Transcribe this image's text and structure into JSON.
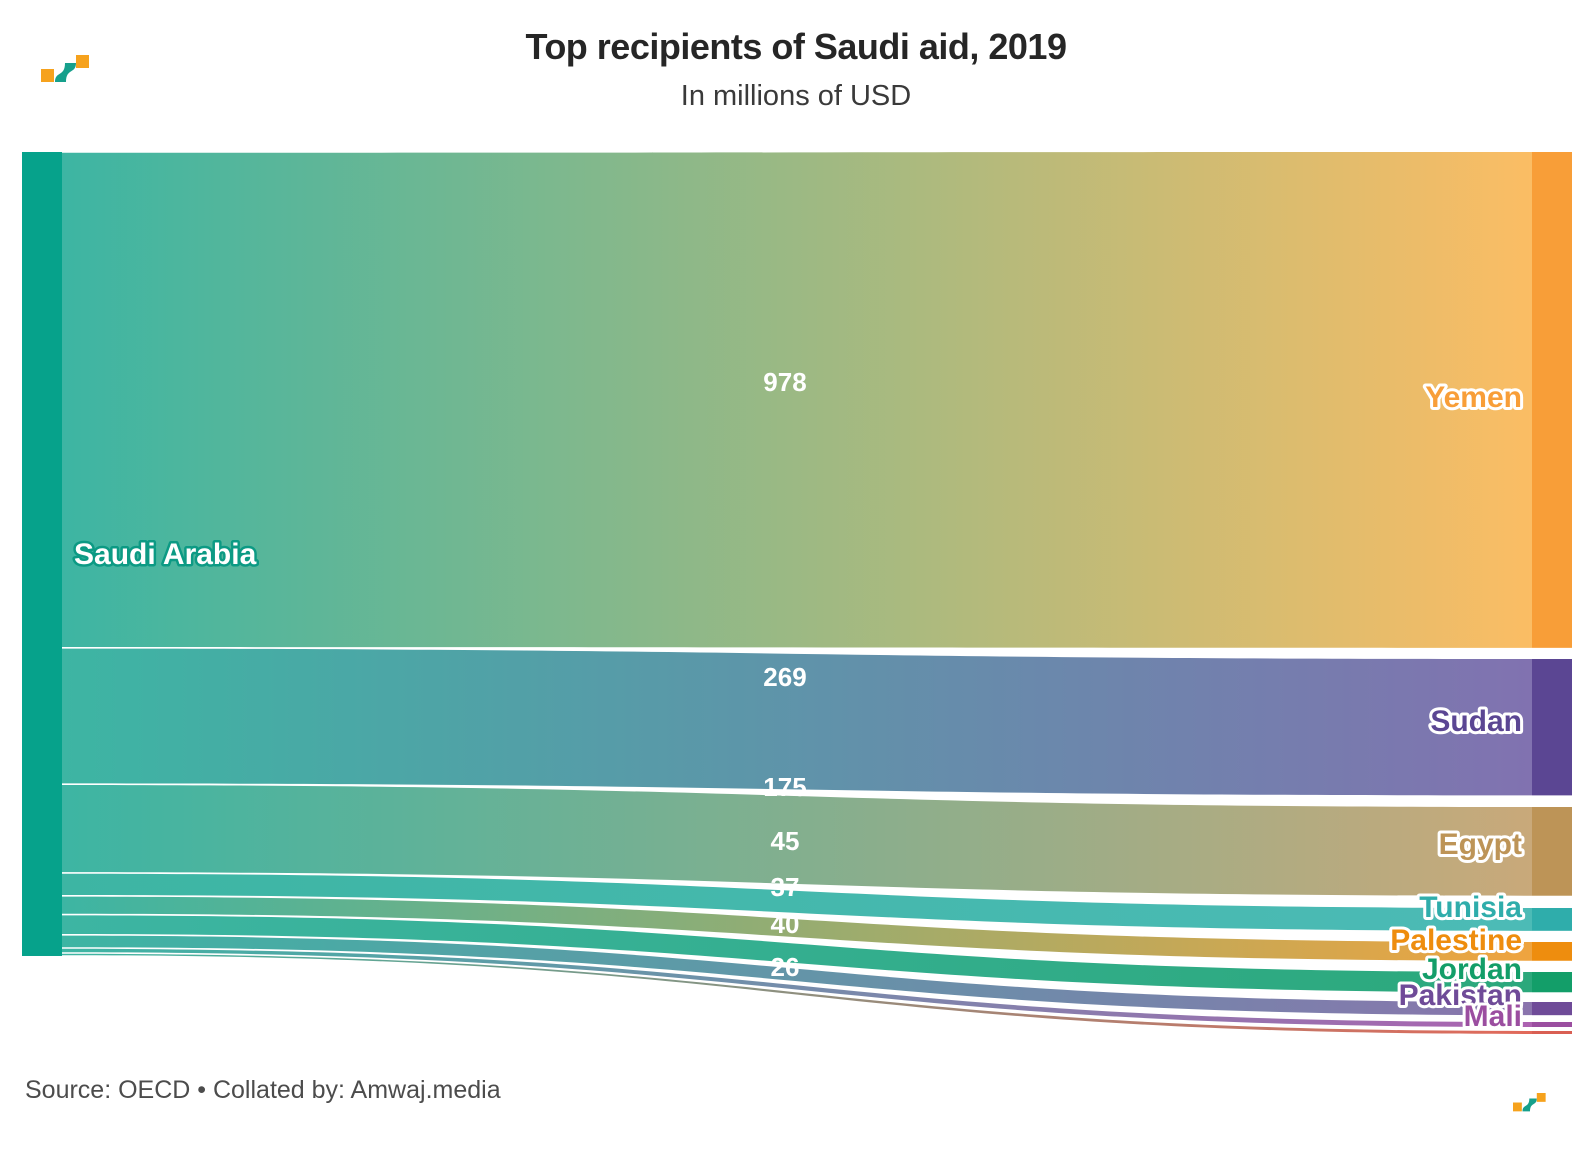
{
  "title": "Top recipients of Saudi aid, 2019",
  "subtitle": "In millions of USD",
  "footer": {
    "source_line": "Source: OECD • Collated by: Amwaj.media"
  },
  "logo": {
    "name": "amwaj-media-logo",
    "orange": "#f6a21d",
    "teal": "#16a08c"
  },
  "chart_data": {
    "type": "sankey",
    "title": "Top recipients of Saudi aid, 2019",
    "subtitle": "In millions of USD",
    "units": "millions of USD",
    "source_node": {
      "label": "Saudi Arabia",
      "color": "#06a28b",
      "flow_start_color": "#3db5a3"
    },
    "flows": [
      {
        "target": "Yemen",
        "value": 978,
        "value_label": "978",
        "node_color": "#f89e38",
        "flow_end_color": "#fbbd64"
      },
      {
        "target": "Sudan",
        "value": 269,
        "value_label": "269",
        "node_color": "#5b4693",
        "flow_end_color": "#8172b0"
      },
      {
        "target": "Egypt",
        "value": 175,
        "value_label": "175",
        "node_color": "#bd9457",
        "flow_end_color": "#c9a97a"
      },
      {
        "target": "Tunisia",
        "value": 45,
        "value_label": "45",
        "node_color": "#2fadab",
        "flow_end_color": "#4cbbb6"
      },
      {
        "target": "Palestine",
        "value": 37,
        "value_label": "37",
        "node_color": "#ee8d0e",
        "flow_end_color": "#efa43f"
      },
      {
        "target": "Jordan",
        "value": 40,
        "value_label": "40",
        "node_color": "#139e69",
        "flow_end_color": "#2ba87b"
      },
      {
        "target": "Pakistan",
        "value": 26,
        "value_label": "26",
        "node_color": "#6f4b98",
        "flow_end_color": "#8a74ad"
      },
      {
        "target": "Mali",
        "value": null,
        "value_label": "",
        "node_color": "#9b4ea0",
        "flow_end_color": "#ad62b1"
      },
      {
        "target": "",
        "value": null,
        "value_label": "",
        "node_color": "#d95f53",
        "flow_end_color": "#e2695a"
      }
    ],
    "layout_hints": {
      "orientation": "horizontal",
      "node_columns": 2,
      "legend": "none",
      "grid": "off",
      "labels_on_links": true
    }
  }
}
